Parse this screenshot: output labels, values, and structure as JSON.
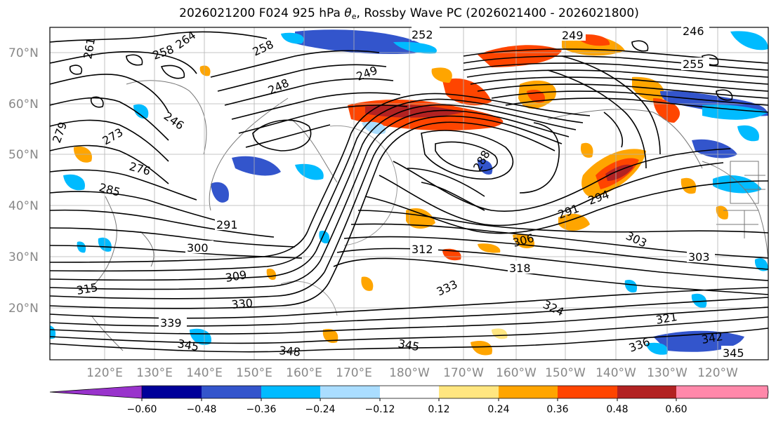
{
  "title": {
    "prefix": "2026021200 F024 925 hPa ",
    "theta": "θ",
    "theta_sub": "e",
    "suffix": ", Rossby Wave PC (2026021400 - 2026021800)"
  },
  "lat_labels": [
    "70°N",
    "60°N",
    "50°N",
    "40°N",
    "30°N",
    "20°N"
  ],
  "lon_labels": [
    "120°E",
    "130°E",
    "140°E",
    "150°E",
    "160°E",
    "170°E",
    "180°W",
    "170°W",
    "160°W",
    "150°W",
    "140°W",
    "130°W",
    "120°W"
  ],
  "contour_labels": [
    "252",
    "249",
    "246",
    "258",
    "264",
    "261",
    "258",
    "249",
    "248",
    "255",
    "246",
    "276",
    "279",
    "273",
    "285",
    "291",
    "294",
    "291",
    "300",
    "303",
    "303",
    "306",
    "309",
    "312",
    "318",
    "321",
    "324",
    "330",
    "333",
    "336",
    "339",
    "342",
    "345",
    "345",
    "348",
    "345",
    "315",
    "288"
  ],
  "colorbar": {
    "ticks": [
      "−0.60",
      "−0.48",
      "−0.36",
      "−0.24",
      "−0.12",
      "0.12",
      "0.24",
      "0.36",
      "0.48",
      "0.60"
    ],
    "colors": [
      "#9933cc",
      "#000099",
      "#3355cc",
      "#00bbff",
      "#aaddff",
      "#ffffff",
      "#ffe680",
      "#ffa500",
      "#ff4500",
      "#b22222",
      "#ff88aa",
      "#ff88cc"
    ]
  }
}
